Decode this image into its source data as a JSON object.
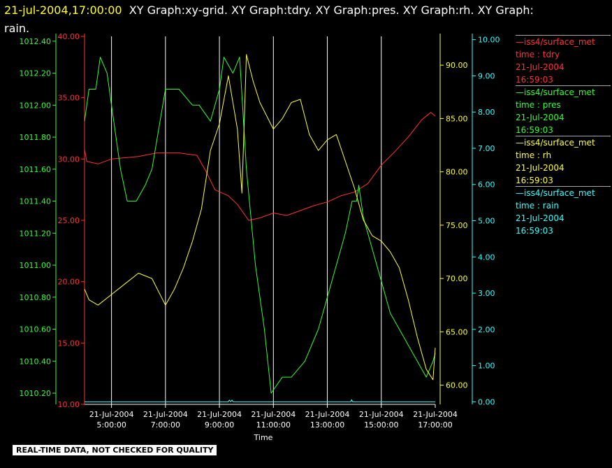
{
  "header": {
    "timestamp": "21-jul-2004,17:00:00",
    "graphs": "XY Graph:xy-grid.  XY Graph:tdry.  XY Graph:pres.  XY Graph:rh.  XY Graph:",
    "graphs_cont": "rain."
  },
  "legend": [
    {
      "source": "iss4/surface_met",
      "var": "time : tdry",
      "date": "21-Jul-2004",
      "time": "16:59:03",
      "color": "#ff3333"
    },
    {
      "source": "iss4/surface_met",
      "var": "time : pres",
      "date": "21-Jul-2004",
      "time": "16:59:03",
      "color": "#33ff33"
    },
    {
      "source": "iss4/surface_met",
      "var": "time : rh",
      "date": "21-Jul-2004",
      "time": "16:59:03",
      "color": "#ffff33"
    },
    {
      "source": "iss4/surface_met",
      "var": "time : rain",
      "date": "21-Jul-2004",
      "time": "16:59:03",
      "color": "#33ffff"
    }
  ],
  "footer": "REAL-TIME DATA, NOT CHECKED FOR QUALITY",
  "chart_data": {
    "type": "line",
    "xlabel": "Time",
    "xlim": [
      "2004-07-21 04:00",
      "2004-07-21 17:00"
    ],
    "xticks": [
      {
        "t": "2004-07-21 05:00",
        "line1": "21-Jul-2004",
        "line2": "5:00:00"
      },
      {
        "t": "2004-07-21 07:00",
        "line1": "21-Jul-2004",
        "line2": "7:00:00"
      },
      {
        "t": "2004-07-21 09:00",
        "line1": "21-Jul-2004",
        "line2": "9:00:00"
      },
      {
        "t": "2004-07-21 11:00",
        "line1": "21-Jul-2004",
        "line2": "11:00:00"
      },
      {
        "t": "2004-07-21 13:00",
        "line1": "21-Jul-2004",
        "line2": "13:00:00"
      },
      {
        "t": "2004-07-21 15:00",
        "line1": "21-Jul-2004",
        "line2": "15:00:00"
      },
      {
        "t": "2004-07-21 17:00",
        "line1": "21-Jul-2004",
        "line2": "17:00:00"
      }
    ],
    "grid": "vertical",
    "axes": [
      {
        "name": "pres",
        "color": "#33ff33",
        "side": "left-outer",
        "ylim": [
          1010.13,
          1012.43
        ],
        "ticks": [
          "1010.20",
          "1010.40",
          "1010.60",
          "1010.80",
          "1011.00",
          "1011.20",
          "1011.40",
          "1011.60",
          "1011.80",
          "1012.00",
          "1012.20",
          "1012.40"
        ]
      },
      {
        "name": "tdry",
        "color": "#ff3333",
        "side": "left-inner",
        "ylim": [
          10,
          40
        ],
        "ticks": [
          "10.00",
          "15.00",
          "20.00",
          "25.00",
          "30.00",
          "35.00",
          "40.00"
        ]
      },
      {
        "name": "rh",
        "color": "#ffff33",
        "side": "right-inner",
        "ylim": [
          58.2,
          92.7
        ],
        "ticks": [
          "60.00",
          "65.00",
          "70.00",
          "75.00",
          "80.00",
          "85.00",
          "90.00"
        ]
      },
      {
        "name": "rain",
        "color": "#33ffff",
        "side": "right-outer",
        "ylim": [
          -0.07,
          10.09
        ],
        "ticks": [
          "0.00",
          "1.00",
          "2.00",
          "3.00",
          "4.00",
          "5.00",
          "6.00",
          "7.00",
          "8.00",
          "9.00",
          "10.00"
        ]
      }
    ],
    "series": [
      {
        "axis": "tdry",
        "color": "#ff3333",
        "x": [
          "2004-07-21 04:00",
          "2004-07-21 04:05",
          "2004-07-21 04:30",
          "2004-07-21 05:00",
          "2004-07-21 06:00",
          "2004-07-21 06:40",
          "2004-07-21 07:30",
          "2004-07-21 08:10",
          "2004-07-21 08:30",
          "2004-07-21 08:50",
          "2004-07-21 09:20",
          "2004-07-21 09:40",
          "2004-07-21 10:05",
          "2004-07-21 10:30",
          "2004-07-21 11:00",
          "2004-07-21 11:30",
          "2004-07-21 12:00",
          "2004-07-21 12:30",
          "2004-07-21 13:00",
          "2004-07-21 13:30",
          "2004-07-21 14:00",
          "2004-07-21 14:30",
          "2004-07-21 15:00",
          "2004-07-21 15:30",
          "2004-07-21 16:00",
          "2004-07-21 16:30",
          "2004-07-21 16:50",
          "2004-07-21 17:00"
        ],
        "y": [
          30.8,
          29.8,
          29.6,
          30.0,
          30.2,
          30.5,
          30.5,
          30.3,
          29.0,
          27.5,
          27.0,
          26.3,
          25.0,
          25.2,
          25.6,
          25.4,
          25.8,
          26.2,
          26.5,
          27.0,
          27.3,
          28.0,
          29.5,
          30.6,
          31.8,
          33.2,
          33.8,
          33.5
        ]
      },
      {
        "axis": "pres",
        "color": "#33ff33",
        "x": [
          "2004-07-21 04:00",
          "2004-07-21 04:10",
          "2004-07-21 04:25",
          "2004-07-21 04:35",
          "2004-07-21 04:50",
          "2004-07-21 05:05",
          "2004-07-21 05:20",
          "2004-07-21 05:35",
          "2004-07-21 05:55",
          "2004-07-21 06:15",
          "2004-07-21 06:30",
          "2004-07-21 07:00",
          "2004-07-21 07:30",
          "2004-07-21 08:00",
          "2004-07-21 08:15",
          "2004-07-21 08:40",
          "2004-07-21 09:00",
          "2004-07-21 09:10",
          "2004-07-21 09:30",
          "2004-07-21 09:45",
          "2004-07-21 10:00",
          "2004-07-21 10:20",
          "2004-07-21 10:40",
          "2004-07-21 10:55",
          "2004-07-21 11:20",
          "2004-07-21 11:40",
          "2004-07-21 12:10",
          "2004-07-21 12:40",
          "2004-07-21 13:10",
          "2004-07-21 13:40",
          "2004-07-21 13:55",
          "2004-07-21 14:05",
          "2004-07-21 14:10",
          "2004-07-21 14:20",
          "2004-07-21 14:40",
          "2004-07-21 15:00",
          "2004-07-21 15:20",
          "2004-07-21 15:40",
          "2004-07-21 16:00",
          "2004-07-21 16:20",
          "2004-07-21 16:40",
          "2004-07-21 16:55",
          "2004-07-21 17:00"
        ],
        "y": [
          1011.9,
          1012.1,
          1012.1,
          1012.3,
          1012.2,
          1011.9,
          1011.6,
          1011.4,
          1011.4,
          1011.5,
          1011.6,
          1012.1,
          1012.1,
          1012.0,
          1012.0,
          1011.9,
          1012.1,
          1012.3,
          1012.2,
          1012.3,
          1011.6,
          1011.0,
          1010.6,
          1010.2,
          1010.3,
          1010.3,
          1010.4,
          1010.6,
          1010.9,
          1011.2,
          1011.4,
          1011.4,
          1011.5,
          1011.3,
          1011.1,
          1010.9,
          1010.7,
          1010.6,
          1010.5,
          1010.4,
          1010.3,
          1010.4,
          1010.45
        ]
      },
      {
        "axis": "rh",
        "color": "#ffff33",
        "x": [
          "2004-07-21 04:00",
          "2004-07-21 04:10",
          "2004-07-21 04:30",
          "2004-07-21 05:00",
          "2004-07-21 05:30",
          "2004-07-21 06:00",
          "2004-07-21 06:30",
          "2004-07-21 07:00",
          "2004-07-21 07:20",
          "2004-07-21 07:40",
          "2004-07-21 08:00",
          "2004-07-21 08:20",
          "2004-07-21 08:40",
          "2004-07-21 09:00",
          "2004-07-21 09:20",
          "2004-07-21 09:40",
          "2004-07-21 09:50",
          "2004-07-21 10:00",
          "2004-07-21 10:15",
          "2004-07-21 10:30",
          "2004-07-21 11:00",
          "2004-07-21 11:20",
          "2004-07-21 11:40",
          "2004-07-21 12:00",
          "2004-07-21 12:20",
          "2004-07-21 12:40",
          "2004-07-21 13:00",
          "2004-07-21 13:20",
          "2004-07-21 13:40",
          "2004-07-21 14:00",
          "2004-07-21 14:20",
          "2004-07-21 14:40",
          "2004-07-21 15:00",
          "2004-07-21 15:20",
          "2004-07-21 15:40",
          "2004-07-21 16:00",
          "2004-07-21 16:20",
          "2004-07-21 16:40",
          "2004-07-21 16:55",
          "2004-07-21 17:00"
        ],
        "y": [
          69.0,
          68.0,
          67.5,
          68.5,
          69.5,
          70.5,
          70.0,
          67.5,
          69.0,
          71.0,
          73.5,
          76.5,
          82.0,
          84.5,
          89.0,
          84.0,
          78.0,
          91.0,
          88.5,
          86.5,
          84.0,
          85.0,
          86.5,
          86.8,
          83.5,
          82.0,
          83.0,
          83.5,
          81.0,
          78.5,
          75.5,
          74.0,
          73.5,
          72.5,
          71.0,
          68.0,
          64.5,
          61.5,
          60.5,
          63.5
        ]
      },
      {
        "axis": "rain",
        "color": "#33ffff",
        "x": [
          "2004-07-21 04:00",
          "2004-07-21 09:20",
          "2004-07-21 09:22",
          "2004-07-21 09:25",
          "2004-07-21 09:28",
          "2004-07-21 09:30",
          "2004-07-21 13:52",
          "2004-07-21 13:54",
          "2004-07-21 13:56",
          "2004-07-21 17:00"
        ],
        "y": [
          0.0,
          0.0,
          0.05,
          0.0,
          0.05,
          0.0,
          0.0,
          0.06,
          0.0,
          0.0
        ]
      }
    ]
  }
}
